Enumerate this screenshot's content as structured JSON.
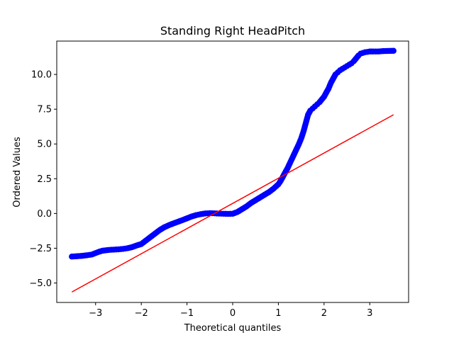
{
  "chart_data": {
    "type": "scatter",
    "title": "Standing Right HeadPitch",
    "xlabel": "Theoretical quantiles",
    "ylabel": "Ordered Values",
    "xlim": [
      -3.85,
      3.85
    ],
    "ylim": [
      -6.4,
      12.4
    ],
    "grid": false,
    "xticks": [
      -3,
      -2,
      -1,
      0,
      1,
      2,
      3
    ],
    "xtick_labels": [
      "−3",
      "−2",
      "−1",
      "0",
      "1",
      "2",
      "3"
    ],
    "yticks": [
      -5.0,
      -2.5,
      0.0,
      2.5,
      5.0,
      7.5,
      10.0
    ],
    "ytick_labels": [
      "−5.0",
      "−2.5",
      "0.0",
      "2.5",
      "5.0",
      "7.5",
      "10.0"
    ],
    "marker_color": "#0000ff",
    "line_color": "#ff0000",
    "quantile_points": {
      "x": [
        -3.52,
        -3.3,
        -3.18,
        -3.08,
        -3.0,
        -2.92,
        -2.85,
        -2.78,
        -2.7,
        -2.6,
        -2.5,
        -2.4,
        -2.3,
        -2.2,
        -2.1,
        -2.0,
        -1.9,
        -1.8,
        -1.7,
        -1.6,
        -1.5,
        -1.4,
        -1.3,
        -1.2,
        -1.1,
        -1.0,
        -0.9,
        -0.8,
        -0.7,
        -0.6,
        -0.5,
        -0.4,
        -0.3,
        -0.2,
        -0.1,
        0.0,
        0.1,
        0.2,
        0.3,
        0.4,
        0.5,
        0.6,
        0.7,
        0.8,
        0.9,
        1.0,
        1.05,
        1.1,
        1.15,
        1.2,
        1.25,
        1.3,
        1.35,
        1.4,
        1.45,
        1.5,
        1.55,
        1.6,
        1.65,
        1.7,
        1.75,
        1.8,
        1.85,
        1.9,
        1.95,
        2.0,
        2.05,
        2.1,
        2.15,
        2.2,
        2.25,
        2.3,
        2.35,
        2.4,
        2.45,
        2.5,
        2.55,
        2.6,
        2.65,
        2.7,
        2.75,
        2.8,
        2.85,
        2.9,
        2.95,
        3.0,
        3.08,
        3.18,
        3.3,
        3.52
      ],
      "y": [
        -3.1,
        -3.05,
        -3.0,
        -2.95,
        -2.85,
        -2.75,
        -2.68,
        -2.65,
        -2.62,
        -2.6,
        -2.58,
        -2.55,
        -2.5,
        -2.42,
        -2.3,
        -2.2,
        -1.95,
        -1.7,
        -1.45,
        -1.2,
        -1.0,
        -0.85,
        -0.72,
        -0.6,
        -0.48,
        -0.35,
        -0.22,
        -0.12,
        -0.05,
        0.0,
        0.02,
        0.01,
        -0.01,
        -0.02,
        -0.03,
        -0.02,
        0.1,
        0.3,
        0.5,
        0.75,
        0.95,
        1.15,
        1.35,
        1.55,
        1.8,
        2.1,
        2.35,
        2.65,
        2.95,
        3.25,
        3.6,
        3.95,
        4.3,
        4.65,
        5.0,
        5.4,
        5.9,
        6.5,
        7.1,
        7.4,
        7.55,
        7.7,
        7.85,
        8.0,
        8.2,
        8.4,
        8.7,
        9.0,
        9.4,
        9.7,
        10.0,
        10.15,
        10.3,
        10.4,
        10.5,
        10.6,
        10.7,
        10.8,
        10.95,
        11.15,
        11.35,
        11.5,
        11.55,
        11.6,
        11.62,
        11.65,
        11.65,
        11.65,
        11.68,
        11.7
      ]
    },
    "fit_line": {
      "x": [
        -3.52,
        3.52
      ],
      "y": [
        -5.65,
        7.1
      ]
    }
  }
}
